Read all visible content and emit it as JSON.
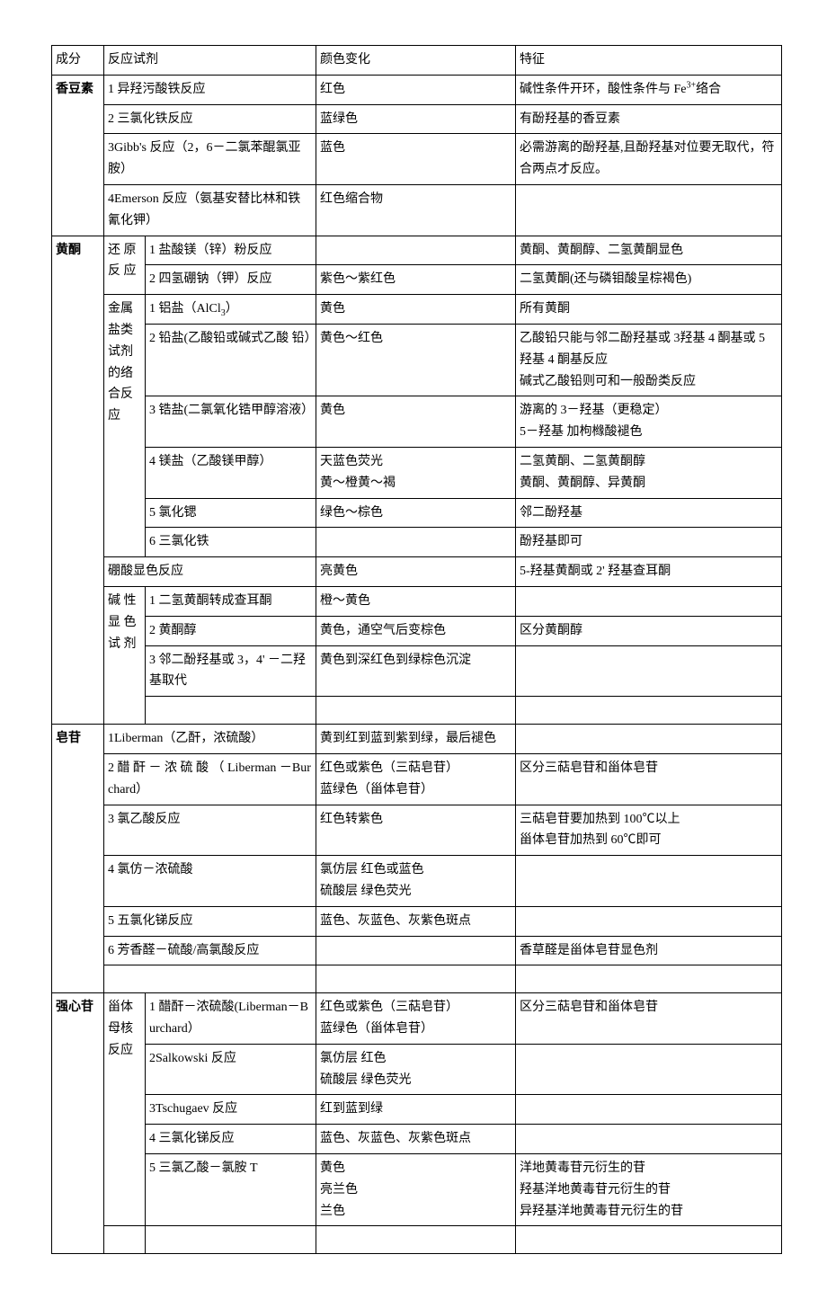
{
  "headers": {
    "c1": "成分",
    "c2": "反应试剂",
    "c4": "颜色变化",
    "c5": "特征"
  },
  "coumarins": {
    "name": "香豆素",
    "r1": {
      "reagent": "1 异羟污酸铁反应",
      "color": "红色",
      "feature_a": "碱性条件开环，酸性条件与 Fe",
      "feature_sup": "3+",
      "feature_b": "络合"
    },
    "r2": {
      "reagent": "2 三氯化铁反应",
      "color": "蓝绿色",
      "feature": "有酚羟基的香豆素"
    },
    "r3": {
      "reagent": "3Gibb's 反应（2，6－二氯苯醌氯亚胺）",
      "color": "蓝色",
      "feature": "必需游离的酚羟基,且酚羟基对位要无取代，符合两点才反应。"
    },
    "r4": {
      "reagent": "4Emerson 反应（氨基安替比林和铁氰化钾）",
      "color": "红色缩合物",
      "feature": ""
    }
  },
  "flavones": {
    "name": "黄酮",
    "g1": {
      "label": "还 原反 应"
    },
    "r1": {
      "reagent": "1 盐酸镁（锌）粉反应",
      "color": "",
      "feature": "黄酮、黄酮醇、二氢黄酮显色"
    },
    "r2": {
      "reagent": "2 四氢硼钠（钾）反应",
      "color": "紫色～紫红色",
      "feature": "二氢黄酮(还与磷钼酸呈棕褐色)"
    },
    "g2": {
      "label": "金属盐类试剂的络合反 应"
    },
    "r3": {
      "reagent_a": "1 铝盐（AlCl",
      "reagent_sub": "3",
      "reagent_b": "）",
      "color": "黄色",
      "feature": "所有黄酮"
    },
    "r4": {
      "reagent": "2 铅盐(乙酸铅或碱式乙酸 铅）",
      "color": "黄色～红色",
      "feature": "乙酸铅只能与邻二酚羟基或 3羟基 4 酮基或 5 羟基 4 酮基反应\n碱式乙酸铅则可和一般酚类反应"
    },
    "r5": {
      "reagent": "3 锆盐(二氯氧化锆甲醇溶液）",
      "color": "黄色",
      "feature": "游离的 3－羟基（更稳定）\n5－羟基  加枸橼酸褪色"
    },
    "r6": {
      "reagent": "4 镁盐（乙酸镁甲醇）",
      "color": "天蓝色荧光\n黄～橙黄～褐",
      "feature": "二氢黄酮、二氢黄酮醇\n黄酮、黄酮醇、异黄酮"
    },
    "r7": {
      "reagent": "5 氯化锶",
      "color": "绿色～棕色",
      "feature": "邻二酚羟基"
    },
    "r8": {
      "reagent": "6 三氯化铁",
      "color": "",
      "feature": "酚羟基即可"
    },
    "r9": {
      "reagent": "硼酸显色反应",
      "color": "亮黄色",
      "feature": "5-羟基黄酮或 2' 羟基查耳酮"
    },
    "g3": {
      "label": "碱  性显  色试 剂"
    },
    "r10": {
      "reagent": "1 二氢黄酮转成查耳酮",
      "color": "橙～黄色",
      "feature": ""
    },
    "r11": {
      "reagent": "2 黄酮醇",
      "color": "黄色，通空气后变棕色",
      "feature": "区分黄酮醇"
    },
    "r12": {
      "reagent": "3 邻二酚羟基或 3，4' －二羟基取代",
      "color": "黄色到深红色到绿棕色沉淀",
      "feature": ""
    }
  },
  "saponins": {
    "name": "皂苷",
    "r1": {
      "reagent": "1Liberman（乙酐，浓硫酸）",
      "color": "黄到红到蓝到紫到绿，最后褪色",
      "feature": ""
    },
    "r2": {
      "reagent": "2 醋 酐 － 浓 硫 酸 （ Liberman －Burchard）",
      "color": "红色或紫色（三萜皂苷）\n蓝绿色（甾体皂苷）",
      "feature": "区分三萜皂苷和甾体皂苷"
    },
    "r3": {
      "reagent": "3 氯乙酸反应",
      "color": "红色转紫色",
      "feature": "三萜皂苷要加热到 100℃以上\n甾体皂苷加热到 60℃即可"
    },
    "r4": {
      "reagent": "4 氯仿－浓硫酸",
      "color": "氯仿层  红色或蓝色\n硫酸层  绿色荧光",
      "feature": ""
    },
    "r5": {
      "reagent": "5 五氯化锑反应",
      "color": "蓝色、灰蓝色、灰紫色斑点",
      "feature": ""
    },
    "r6": {
      "reagent": "6 芳香醛－硫酸/高氯酸反应",
      "color": "",
      "feature": "香草醛是甾体皂苷显色剂"
    }
  },
  "cardiac": {
    "name": "强心苷",
    "g1": {
      "label": "甾体母核反应"
    },
    "r1": {
      "reagent": "1 醋酐－浓硫酸(Liberman－Burchard）",
      "color": "红色或紫色（三萜皂苷）\n蓝绿色（甾体皂苷）",
      "feature": "区分三萜皂苷和甾体皂苷"
    },
    "r2": {
      "reagent": "2Salkowski 反应",
      "color": "氯仿层  红色\n硫酸层  绿色荧光",
      "feature": ""
    },
    "r3": {
      "reagent": "3Tschugaev 反应",
      "color": "红到蓝到绿",
      "feature": ""
    },
    "r4": {
      "reagent": "4 三氯化锑反应",
      "color": "蓝色、灰蓝色、灰紫色斑点",
      "feature": ""
    },
    "r5": {
      "reagent": "5 三氯乙酸－氯胺 T",
      "color": "黄色\n亮兰色\n兰色",
      "feature": "洋地黄毒苷元衍生的苷\n羟基洋地黄毒苷元衍生的苷\n异羟基洋地黄毒苷元衍生的苷"
    }
  }
}
